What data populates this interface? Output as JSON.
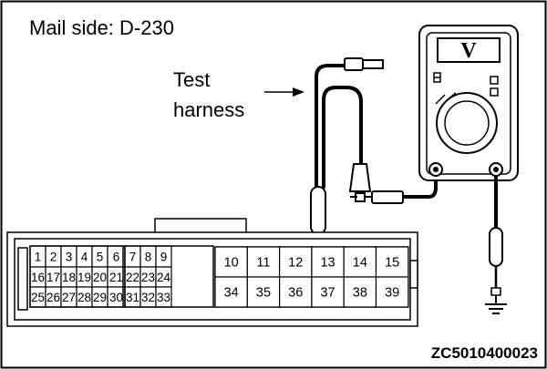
{
  "title": "Mail side: D-230",
  "callout": {
    "line1": "Test",
    "line2": "harness"
  },
  "meter": {
    "display_symbol": "V",
    "icon": "voltmeter-icon"
  },
  "connector": {
    "left_block_rows": [
      [
        "1",
        "2",
        "3",
        "4",
        "5",
        "6",
        "7",
        "8",
        "9"
      ],
      [
        "16",
        "17",
        "18",
        "19",
        "20",
        "21",
        "22",
        "23",
        "24"
      ],
      [
        "25",
        "26",
        "27",
        "28",
        "29",
        "30",
        "31",
        "32",
        "33"
      ]
    ],
    "right_block_rows": [
      [
        "10",
        "11",
        "12",
        "13",
        "14",
        "15"
      ],
      [
        "34",
        "35",
        "36",
        "37",
        "38",
        "39"
      ]
    ],
    "probed_terminal": "13"
  },
  "ground_icon": "ground-icon",
  "figure_code": "ZC5010400023"
}
